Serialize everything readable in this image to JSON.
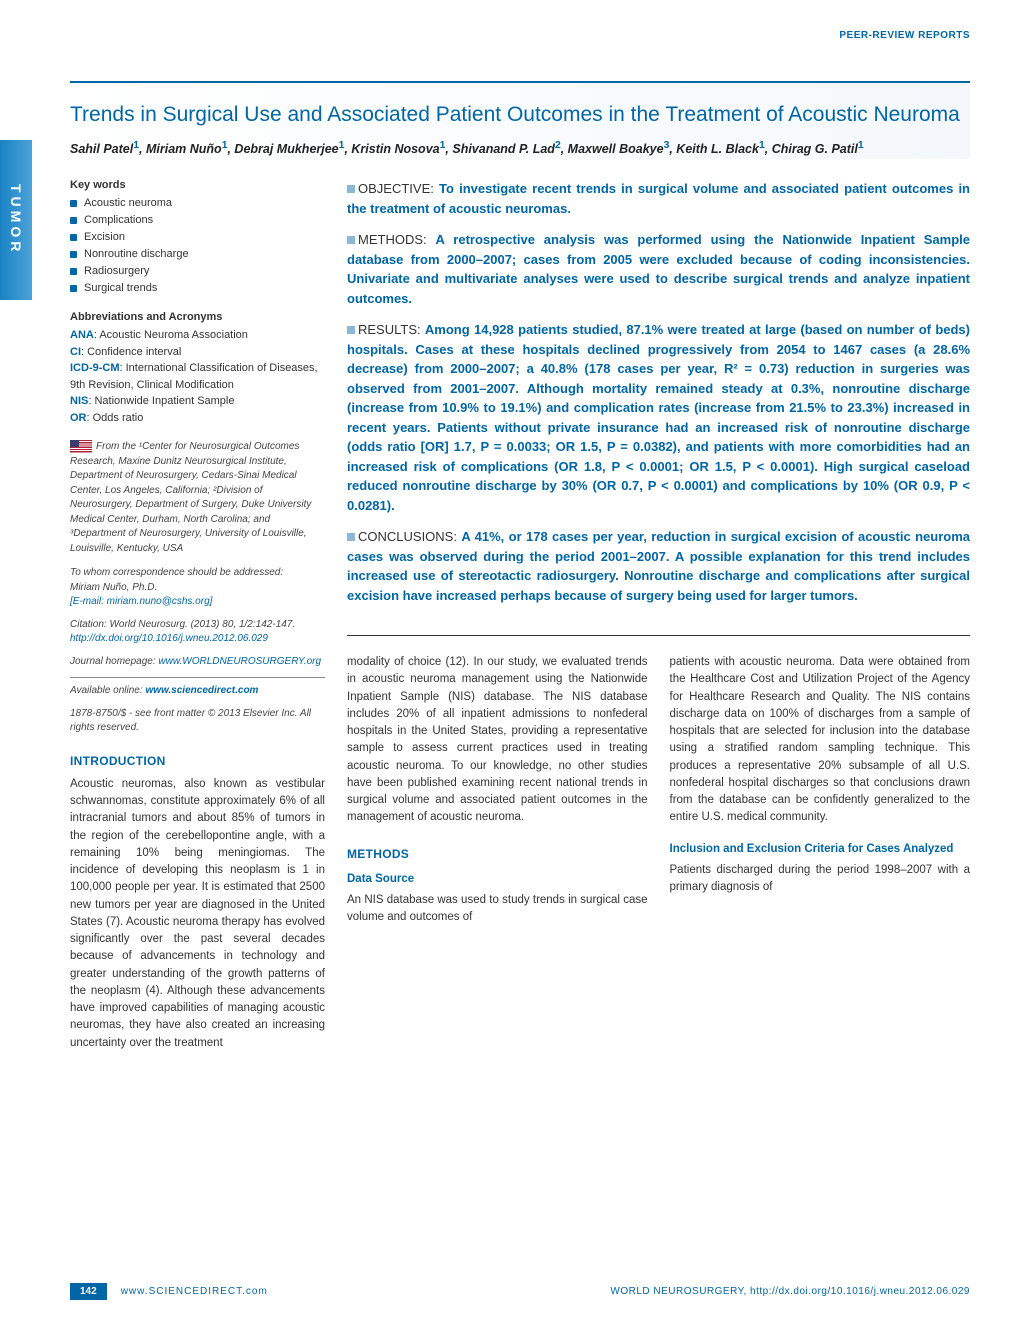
{
  "header": {
    "label": "PEER-REVIEW REPORTS"
  },
  "sideTab": "TUMOR",
  "title": "Trends in Surgical Use and Associated Patient Outcomes in the Treatment of Acoustic Neuroma",
  "authorsHtml": "Sahil Patel<sup>1</sup>, Miriam Nuño<sup>1</sup>, Debraj Mukherjee<sup>1</sup>, Kristin Nosova<sup>1</sup>, Shivanand P. Lad<sup>2</sup>, Maxwell Boakye<sup>3</sup>, Keith L. Black<sup>1</sup>, Chirag G. Patil<sup>1</sup>",
  "keywords": {
    "label": "Key words",
    "items": [
      "Acoustic neuroma",
      "Complications",
      "Excision",
      "Nonroutine discharge",
      "Radiosurgery",
      "Surgical trends"
    ]
  },
  "abbr": {
    "label": "Abbreviations and Acronyms",
    "items": [
      {
        "k": "ANA",
        "v": ": Acoustic Neuroma Association"
      },
      {
        "k": "CI",
        "v": ": Confidence interval"
      },
      {
        "k": "ICD-9-CM",
        "v": ": International Classification of Diseases, 9th Revision, Clinical Modification"
      },
      {
        "k": "NIS",
        "v": ": Nationwide Inpatient Sample"
      },
      {
        "k": "OR",
        "v": ": Odds ratio"
      }
    ]
  },
  "affil": "From the ¹Center for Neurosurgical Outcomes Research, Maxine Dunitz Neurosurgical Institute, Department of Neurosurgery, Cedars-Sinai Medical Center, Los Angeles, California; ²Division of Neurosurgery, Department of Surgery, Duke University Medical Center, Durham, North Carolina; and ³Department of Neurosurgery, University of Louisville, Louisville, Kentucky, USA",
  "correspondence": {
    "line1": "To whom correspondence should be addressed:",
    "line2": "Miriam Nuño, Ph.D.",
    "email": "[E-mail: miriam.nuno@cshs.org]"
  },
  "citation": "Citation: World Neurosurg. (2013) 80, 1/2:142-147.",
  "doi": "http://dx.doi.org/10.1016/j.wneu.2012.06.029",
  "journal": {
    "label": "Journal homepage: ",
    "url": "www.WORLDNEUROSURGERY.org"
  },
  "online": {
    "label": "Available online: ",
    "url": "www.sciencedirect.com"
  },
  "copyright": "1878-8750/$ - see front matter © 2013 Elsevier Inc. All rights reserved.",
  "abstract": {
    "objective": {
      "head": "OBJECTIVE:",
      "body": "To investigate recent trends in surgical volume and associated patient outcomes in the treatment of acoustic neuromas."
    },
    "methods": {
      "head": "METHODS:",
      "body": "A retrospective analysis was performed using the Nationwide Inpatient Sample database from 2000–2007; cases from 2005 were excluded because of coding inconsistencies. Univariate and multivariate analyses were used to describe surgical trends and analyze inpatient outcomes."
    },
    "results": {
      "head": "RESULTS:",
      "body": "Among 14,928 patients studied, 87.1% were treated at large (based on number of beds) hospitals. Cases at these hospitals declined progressively from 2054 to 1467 cases (a 28.6% decrease) from 2000–2007; a 40.8% (178 cases per year, R² = 0.73) reduction in surgeries was observed from 2001–2007. Although mortality remained steady at 0.3%, nonroutine discharge (increase from 10.9% to 19.1%) and complication rates (increase from 21.5% to 23.3%) increased in recent years. Patients without private insurance had an increased risk of nonroutine discharge (odds ratio [OR] 1.7, P = 0.0033; OR 1.5, P = 0.0382), and patients with more comorbidities had an increased risk of complications (OR 1.8, P < 0.0001; OR 1.5, P < 0.0001). High surgical caseload reduced nonroutine discharge by 30% (OR 0.7, P < 0.0001) and complications by 10% (OR 0.9, P < 0.0281)."
    },
    "conclusions": {
      "head": "CONCLUSIONS:",
      "body": "A 41%, or 178 cases per year, reduction in surgical excision of acoustic neuroma cases was observed during the period 2001–2007. A possible explanation for this trend includes increased use of stereotactic radiosurgery. Nonroutine discharge and complications after surgical excision have increased perhaps because of surgery being used for larger tumors."
    }
  },
  "intro": {
    "head": "INTRODUCTION",
    "leftText": "Acoustic neuromas, also known as vestibular schwannomas, constitute approximately 6% of all intracranial tumors and about 85% of tumors in the region of the cerebellopontine angle, with a remaining 10% being meningiomas. The incidence of developing this neoplasm is 1 in 100,000 people per year. It is estimated that 2500 new tumors per year are diagnosed in the United States (7). Acoustic neuroma therapy has evolved significantly over the past several decades because of advancements in technology and greater understanding of the growth patterns of the neoplasm (4). Although these advancements have improved capabilities of managing acoustic neuromas, they have also created an increasing uncertainty over the treatment",
    "col1": "modality of choice (12). In our study, we evaluated trends in acoustic neuroma management using the Nationwide Inpatient Sample (NIS) database. The NIS database includes 20% of all inpatient admissions to nonfederal hospitals in the United States, providing a representative sample to assess current practices used in treating acoustic neuroma. To our knowledge, no other studies have been published examining recent national trends in surgical volume and associated patient outcomes in the management of acoustic neuroma.",
    "col2": "patients with acoustic neuroma. Data were obtained from the Healthcare Cost and Utilization Project of the Agency for Healthcare Research and Quality. The NIS contains discharge data on 100% of discharges from a sample of hospitals that are selected for inclusion into the database using a stratified random sampling technique. This produces a representative 20% subsample of all U.S. nonfederal hospital discharges so that conclusions drawn from the database can be confidently generalized to the entire U.S. medical community."
  },
  "methods": {
    "head": "METHODS",
    "sub1": "Data Source",
    "p1": "An NIS database was used to study trends in surgical case volume and outcomes of",
    "sub2": "Inclusion and Exclusion Criteria for Cases Analyzed",
    "p2": "Patients discharged during the period 1998–2007 with a primary diagnosis of"
  },
  "footer": {
    "page": "142",
    "sd": "www.SCIENCEDIRECT.com",
    "right": "WORLD NEUROSURGERY, http://dx.doi.org/10.1016/j.wneu.2012.06.029"
  },
  "colors": {
    "accent": "#0066a6",
    "lightBlue": "#8bb8d8"
  }
}
